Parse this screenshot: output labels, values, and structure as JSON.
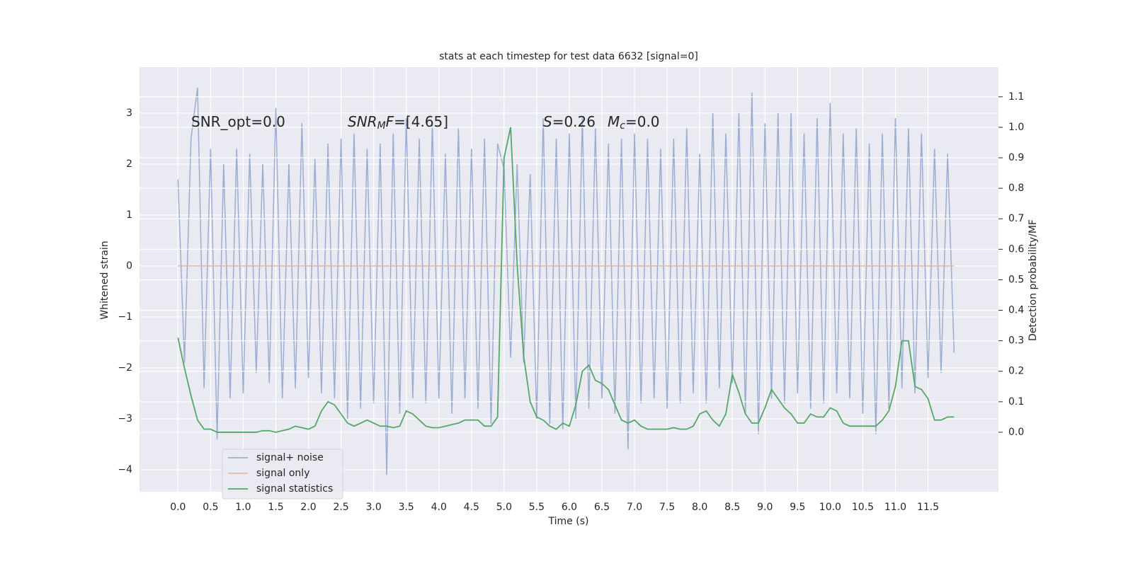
{
  "chart_data": {
    "type": "line",
    "title": "stats at each timestep for test data 6632 [signal=0]",
    "xlabel": "Time (s)",
    "ylabel": "Whitened strain",
    "y2label": "Detection probability/MF",
    "x": [
      0.0,
      0.1,
      0.2,
      0.3,
      0.4,
      0.5,
      0.6,
      0.7,
      0.8,
      0.9,
      1.0,
      1.1,
      1.2,
      1.3,
      1.4,
      1.5,
      1.6,
      1.7,
      1.8,
      1.9,
      2.0,
      2.1,
      2.2,
      2.3,
      2.4,
      2.5,
      2.6,
      2.7,
      2.8,
      2.9,
      3.0,
      3.1,
      3.2,
      3.3,
      3.4,
      3.5,
      3.6,
      3.7,
      3.8,
      3.9,
      4.0,
      4.1,
      4.2,
      4.3,
      4.4,
      4.5,
      4.6,
      4.7,
      4.8,
      4.9,
      5.0,
      5.1,
      5.2,
      5.3,
      5.4,
      5.5,
      5.6,
      5.7,
      5.8,
      5.9,
      6.0,
      6.1,
      6.2,
      6.3,
      6.4,
      6.5,
      6.6,
      6.7,
      6.8,
      6.9,
      7.0,
      7.1,
      7.2,
      7.3,
      7.4,
      7.5,
      7.6,
      7.7,
      7.8,
      7.9,
      8.0,
      8.1,
      8.2,
      8.3,
      8.4,
      8.5,
      8.6,
      8.7,
      8.8,
      8.9,
      9.0,
      9.1,
      9.2,
      9.3,
      9.4,
      9.5,
      9.6,
      9.7,
      9.8,
      9.9,
      10.0,
      10.1,
      10.2,
      10.3,
      10.4,
      10.5,
      10.6,
      10.7,
      10.8,
      10.9,
      11.0,
      11.1,
      11.2,
      11.3,
      11.4,
      11.5,
      11.6,
      11.7,
      11.8,
      11.9
    ],
    "series": [
      {
        "name": "signal+ noise",
        "color": "#9baed1",
        "values": [
          1.7,
          -1.9,
          2.5,
          3.5,
          -2.4,
          2.3,
          -3.4,
          2.0,
          -2.6,
          2.3,
          -2.5,
          2.2,
          -2.1,
          2.0,
          -2.3,
          3.1,
          -2.6,
          2.0,
          -2.4,
          2.8,
          -2.2,
          2.1,
          -2.5,
          2.4,
          -2.6,
          2.5,
          -3.0,
          2.6,
          -2.8,
          2.3,
          -2.7,
          2.4,
          -4.1,
          2.6,
          -2.9,
          2.9,
          -2.6,
          2.5,
          -2.7,
          2.8,
          -2.6,
          2.2,
          -2.9,
          2.7,
          -2.6,
          2.3,
          -2.8,
          2.5,
          -3.1,
          2.4,
          1.9,
          -1.8,
          2.0,
          -1.9,
          1.8,
          -3.0,
          2.9,
          -3.1,
          2.5,
          -3.2,
          2.6,
          -3.0,
          2.9,
          -2.8,
          2.7,
          -2.6,
          2.4,
          -2.9,
          2.5,
          -3.6,
          2.6,
          -2.7,
          2.5,
          -2.6,
          2.3,
          -2.8,
          2.5,
          -2.7,
          2.7,
          -2.5,
          2.2,
          -2.7,
          3.0,
          -2.4,
          2.6,
          -2.3,
          3.0,
          -2.9,
          3.4,
          -3.3,
          2.8,
          -2.6,
          3.0,
          -2.7,
          3.0,
          -2.5,
          2.6,
          -2.8,
          2.9,
          -2.7,
          3.2,
          -2.5,
          2.6,
          -2.6,
          2.7,
          -2.9,
          2.4,
          -3.3,
          2.6,
          -2.8,
          2.9,
          -2.4,
          2.7,
          -2.5,
          2.6,
          -2.2,
          2.3,
          -2.1,
          2.2,
          -1.7
        ]
      },
      {
        "name": "signal only",
        "color": "#e4b7a2",
        "values": [
          0,
          0,
          0,
          0,
          0,
          0,
          0,
          0,
          0,
          0,
          0,
          0,
          0,
          0,
          0,
          0,
          0,
          0,
          0,
          0,
          0,
          0,
          0,
          0,
          0,
          0,
          0,
          0,
          0,
          0,
          0,
          0,
          0,
          0,
          0,
          0,
          0,
          0,
          0,
          0,
          0,
          0,
          0,
          0,
          0,
          0,
          0,
          0,
          0,
          0,
          0,
          0,
          0,
          0,
          0,
          0,
          0,
          0,
          0,
          0,
          0,
          0,
          0,
          0,
          0,
          0,
          0,
          0,
          0,
          0,
          0,
          0,
          0,
          0,
          0,
          0,
          0,
          0,
          0,
          0,
          0,
          0,
          0,
          0,
          0,
          0,
          0,
          0,
          0,
          0,
          0,
          0,
          0,
          0,
          0,
          0,
          0,
          0,
          0,
          0,
          0,
          0,
          0,
          0,
          0,
          0,
          0,
          0,
          0,
          0,
          0,
          0,
          0,
          0,
          0,
          0,
          0,
          0,
          0,
          0
        ]
      },
      {
        "name": "signal statistics",
        "color": "#55a868",
        "axis": "y2",
        "values": [
          0.31,
          0.21,
          0.12,
          0.04,
          0.01,
          0.01,
          0.0,
          0.0,
          0.0,
          0.0,
          0.0,
          0.0,
          0.0,
          0.005,
          0.005,
          0.0,
          0.005,
          0.01,
          0.02,
          0.015,
          0.01,
          0.02,
          0.07,
          0.1,
          0.09,
          0.06,
          0.03,
          0.02,
          0.03,
          0.04,
          0.03,
          0.02,
          0.02,
          0.015,
          0.02,
          0.07,
          0.06,
          0.04,
          0.02,
          0.015,
          0.015,
          0.02,
          0.025,
          0.03,
          0.04,
          0.04,
          0.04,
          0.02,
          0.02,
          0.05,
          0.9,
          1.0,
          0.55,
          0.25,
          0.1,
          0.05,
          0.04,
          0.02,
          0.01,
          0.03,
          0.02,
          0.09,
          0.2,
          0.22,
          0.17,
          0.16,
          0.14,
          0.09,
          0.04,
          0.03,
          0.04,
          0.02,
          0.01,
          0.01,
          0.01,
          0.01,
          0.015,
          0.01,
          0.01,
          0.02,
          0.06,
          0.07,
          0.04,
          0.02,
          0.06,
          0.19,
          0.13,
          0.06,
          0.03,
          0.03,
          0.08,
          0.14,
          0.11,
          0.08,
          0.06,
          0.03,
          0.03,
          0.06,
          0.05,
          0.05,
          0.08,
          0.07,
          0.03,
          0.02,
          0.02,
          0.02,
          0.02,
          0.02,
          0.04,
          0.07,
          0.15,
          0.3,
          0.3,
          0.15,
          0.14,
          0.11,
          0.04,
          0.04,
          0.05,
          0.05
        ]
      }
    ],
    "xlim": [
      -0.59,
      12.58
    ],
    "xticks": [
      {
        "value": 0,
        "label": "0.0"
      },
      0.5,
      {
        "value": 1,
        "label": "1.0"
      },
      1.5,
      {
        "value": 2,
        "label": "2.0"
      },
      2.5,
      {
        "value": 3,
        "label": "3.0"
      },
      3.5,
      {
        "value": 4,
        "label": "4.0"
      },
      4.5,
      {
        "value": 5,
        "label": "5.0"
      },
      5.5,
      {
        "value": 6,
        "label": "6.0"
      },
      6.5,
      {
        "value": 7,
        "label": "7.0"
      },
      7.5,
      {
        "value": 8,
        "label": "8.0"
      },
      8.5,
      {
        "value": 9,
        "label": "9.0"
      },
      9.5,
      {
        "value": 10,
        "label": "10.0"
      },
      10.5,
      {
        "value": 11,
        "label": "11.0"
      },
      11.5
    ],
    "ylim": [
      -4.43,
      3.9
    ],
    "yticks": [
      {
        "value": -4,
        "label": "−4"
      },
      {
        "value": -3,
        "label": "−3"
      },
      {
        "value": -2,
        "label": "−2"
      },
      {
        "value": -1,
        "label": "−1"
      },
      0,
      1,
      2,
      3
    ],
    "y2lim": [
      -0.195,
      1.197
    ],
    "y2ticks": [
      {
        "value": 0,
        "label": "0.0"
      },
      0.1,
      0.2,
      0.3,
      0.4,
      0.5,
      0.6,
      0.7,
      0.8,
      0.9,
      {
        "value": 1,
        "label": "1.0"
      },
      1.1
    ],
    "grid": true,
    "legend": "lower left",
    "annotations": [
      {
        "parts": [
          {
            "text": "SNR_opt=0.0"
          }
        ]
      },
      {
        "parts": [
          {
            "text": "SNR",
            "italic": true
          },
          {
            "text": "M",
            "italic": true,
            "sub": true
          },
          {
            "text": "F",
            "italic": true
          },
          {
            "text": "=[4.65]"
          }
        ]
      },
      {
        "parts": [
          {
            "text": "S",
            "italic": true
          },
          {
            "text": "=0.26"
          }
        ]
      },
      {
        "parts": [
          {
            "text": "M",
            "italic": true
          },
          {
            "text": "c",
            "italic": true,
            "sub": true
          },
          {
            "text": "=0.0"
          }
        ]
      }
    ]
  }
}
